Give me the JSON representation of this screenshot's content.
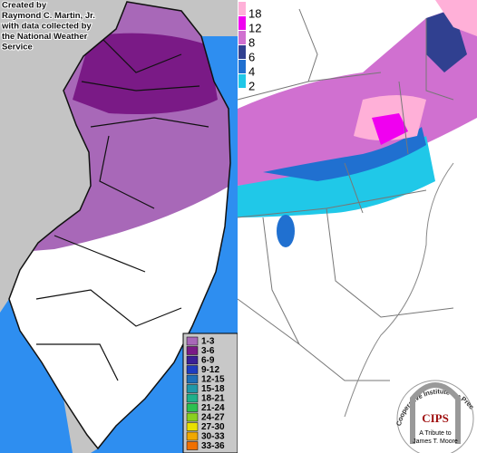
{
  "credit": [
    "Created by",
    "Raymond C. Martin, Jr.",
    "with data collected by",
    "the National Weather",
    "Service"
  ],
  "left_legend": [
    {
      "label": "1-3",
      "color": "#a868b8"
    },
    {
      "label": "3-6",
      "color": "#7a1a86"
    },
    {
      "label": "6-9",
      "color": "#3b1f96"
    },
    {
      "label": "9-12",
      "color": "#1f3cc0"
    },
    {
      "label": "12-15",
      "color": "#1f6fb8"
    },
    {
      "label": "15-18",
      "color": "#1f98a8"
    },
    {
      "label": "18-21",
      "color": "#1fb08a"
    },
    {
      "label": "21-24",
      "color": "#2cc050"
    },
    {
      "label": "24-27",
      "color": "#8ad020"
    },
    {
      "label": "27-30",
      "color": "#e8e000"
    },
    {
      "label": "30-33",
      "color": "#f0a800"
    },
    {
      "label": "33-36",
      "color": "#f07000"
    }
  ],
  "right_legend": [
    {
      "label": "18",
      "color": "#ffb0d8"
    },
    {
      "label": "12",
      "color": "#f000f0"
    },
    {
      "label": "8",
      "color": "#d070d0"
    },
    {
      "label": "6",
      "color": "#304090"
    },
    {
      "label": "4",
      "color": "#2070d0"
    },
    {
      "label": "2",
      "color": "#20c8e8"
    }
  ],
  "logo": {
    "acronym": "CIPS",
    "name": "Cooperative Institute for Precipitation Systems",
    "tribute": "A Tribute to",
    "person": "James T. Moore"
  }
}
